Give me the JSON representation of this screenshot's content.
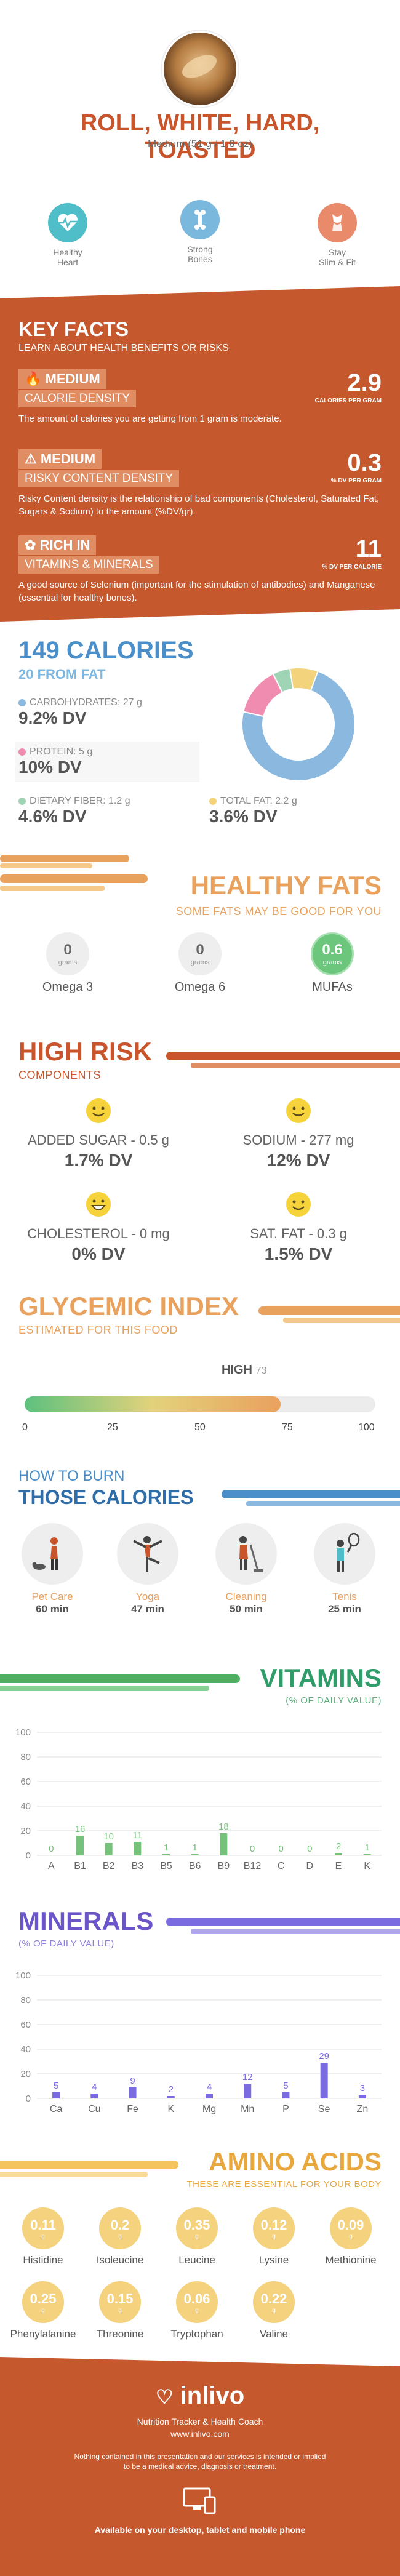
{
  "header": {
    "title_line1": "ROLL, WHITE, HARD,",
    "title_line2": "TOASTED",
    "serving": "Medium (51 g / 1.8 oz)"
  },
  "benefits": [
    {
      "label_line1": "Healthy",
      "label_line2": "Heart",
      "color": "#4fbec8",
      "icon": "heart-monitor-icon"
    },
    {
      "label_line1": "Strong",
      "label_line2": "Bones",
      "color": "#7bb8de",
      "icon": "bone-icon"
    },
    {
      "label_line1": "Stay",
      "label_line2": "Slim & Fit",
      "color": "#e98b6b",
      "icon": "body-shape-icon"
    }
  ],
  "key_facts": {
    "title": "KEY FACTS",
    "subtitle": "LEARN ABOUT HEALTH BENEFITS OR RISKS",
    "items": [
      {
        "level": "MEDIUM",
        "name": "CALORIE DENSITY",
        "value": "2.9",
        "unit": "CALORIES PER GRAM",
        "desc": "The amount of calories you are getting from 1 gram is moderate."
      },
      {
        "level": "MEDIUM",
        "name": "RISKY CONTENT DENSITY",
        "value": "0.3",
        "unit": "% DV PER GRAM",
        "desc": "Risky Content density is the relationship of bad components (Cholesterol, Saturated Fat, Sugars & Sodium) to the amount (%DV/gr)."
      },
      {
        "level": "RICH  IN",
        "name": "VITAMINS & MINERALS",
        "value": "11",
        "unit": "% DV PER CALORIE",
        "desc": "A good source of Selenium (important for the stimulation of antibodies) and Manganese (essential for healthy bones)."
      }
    ]
  },
  "calories": {
    "title": "149 CALORIES",
    "subtitle": "20 FROM FAT",
    "macros": [
      {
        "label": "CARBOHYDRATES: 27 g",
        "dv": "9.2% DV",
        "color": "#8ab8df"
      },
      {
        "label": "PROTEIN: 5 g",
        "dv": "10% DV",
        "color": "#f08cb0"
      },
      {
        "label": "DIETARY FIBER: 1.2 g",
        "dv": "4.6% DV",
        "color": "#9fd5b5"
      },
      {
        "label": "TOTAL FAT: 2.2 g",
        "dv": "3.6% DV",
        "color": "#f3d37c"
      }
    ],
    "pie": [
      {
        "name": "carbs",
        "value": 73,
        "color": "#8ab8df"
      },
      {
        "name": "protein",
        "value": 14,
        "color": "#f08cb0"
      },
      {
        "name": "fiber",
        "value": 5,
        "color": "#9fd5b5"
      },
      {
        "name": "fat",
        "value": 8,
        "color": "#f3d37c"
      }
    ]
  },
  "fats": {
    "title": "HEALTHY FATS",
    "subtitle": "SOME FATS MAY BE GOOD FOR YOU",
    "items": [
      {
        "name": "Omega 3",
        "value": "0",
        "unit": "grams"
      },
      {
        "name": "Omega 6",
        "value": "0",
        "unit": "grams"
      },
      {
        "name": "MUFAs",
        "value": "0.6",
        "unit": "grams"
      }
    ]
  },
  "risk": {
    "title": "HIGH RISK",
    "subtitle": "COMPONENTS",
    "items": [
      {
        "label": "ADDED SUGAR - 0.5 g",
        "dv": "1.7% DV"
      },
      {
        "label": "SODIUM - 277 mg",
        "dv": "12% DV"
      },
      {
        "label": "CHOLESTEROL - 0 mg",
        "dv": "0% DV"
      },
      {
        "label": "SAT. FAT - 0.3 g",
        "dv": "1.5% DV"
      }
    ]
  },
  "glycemic": {
    "title": "GLYCEMIC INDEX",
    "subtitle": "ESTIMATED FOR THIS FOOD",
    "level": "HIGH",
    "value": 73,
    "value_label": "73",
    "ticks": [
      "0",
      "25",
      "50",
      "75",
      "100"
    ]
  },
  "burn": {
    "title_line1": "HOW TO BURN",
    "title_line2": "THOSE CALORIES",
    "items": [
      {
        "name": "Pet Care",
        "minutes": "60 min",
        "icon": "dog-walking-icon"
      },
      {
        "name": "Yoga",
        "minutes": "47 min",
        "icon": "yoga-icon"
      },
      {
        "name": "Cleaning",
        "minutes": "50 min",
        "icon": "cleaning-icon"
      },
      {
        "name": "Tenis",
        "minutes": "25 min",
        "icon": "tennis-icon"
      }
    ]
  },
  "vitamins": {
    "title": "VITAMINS",
    "subtitle": "(% OF DAILY VALUE)",
    "chart_data": {
      "type": "bar",
      "categories": [
        "A",
        "B1",
        "B2",
        "B3",
        "B5",
        "B6",
        "B9",
        "B12",
        "C",
        "D",
        "E",
        "K"
      ],
      "values": [
        0,
        16,
        10,
        11,
        1,
        1,
        18,
        0,
        0,
        0,
        2,
        1
      ],
      "ylim": [
        0,
        100
      ],
      "yticks": [
        "0",
        "20",
        "40",
        "60",
        "80",
        "100"
      ],
      "color": "#76c27a"
    }
  },
  "minerals": {
    "title": "MINERALS",
    "subtitle": "(% OF DAILY VALUE)",
    "chart_data": {
      "type": "bar",
      "categories": [
        "Ca",
        "Cu",
        "Fe",
        "K",
        "Mg",
        "Mn",
        "P",
        "Se",
        "Zn"
      ],
      "values": [
        5,
        4,
        9,
        2,
        4,
        12,
        5,
        29,
        3
      ],
      "ylim": [
        0,
        100
      ],
      "yticks": [
        "0",
        "20",
        "40",
        "60",
        "80",
        "100"
      ],
      "color": "#7a6be0"
    }
  },
  "amino": {
    "title": "AMINO ACIDS",
    "subtitle": "THESE ARE ESSENTIAL FOR YOUR BODY",
    "items": [
      {
        "name": "Histidine",
        "value": "0.11",
        "unit": "g"
      },
      {
        "name": "Isoleucine",
        "value": "0.2",
        "unit": "g"
      },
      {
        "name": "Leucine",
        "value": "0.35",
        "unit": "g"
      },
      {
        "name": "Lysine",
        "value": "0.12",
        "unit": "g"
      },
      {
        "name": "Methionine",
        "value": "0.09",
        "unit": "g"
      },
      {
        "name": "Phenylalanine",
        "value": "0.25",
        "unit": "g"
      },
      {
        "name": "Threonine",
        "value": "0.15",
        "unit": "g"
      },
      {
        "name": "Tryptophan",
        "value": "0.06",
        "unit": "g"
      },
      {
        "name": "Valine",
        "value": "0.22",
        "unit": "g"
      }
    ]
  },
  "footer": {
    "brand": "inlivo",
    "tagline": "Nutrition Tracker & Health Coach",
    "url": "www.inlivo.com",
    "disclaimer_line1": "Nothing contained in this presentation and our services is intended or implied",
    "disclaimer_line2": "to be a medical advice, diagnosis or treatment.",
    "availability": "Available on your desktop, tablet and mobile phone"
  }
}
